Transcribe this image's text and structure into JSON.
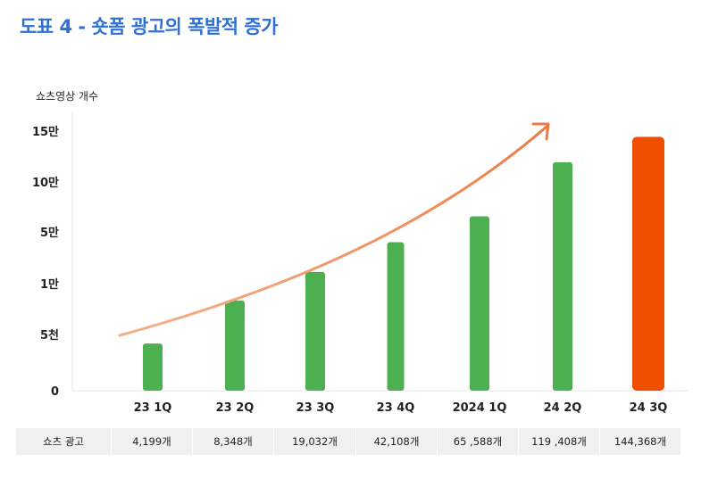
{
  "title": "도표 4 - 숏폼 광고의 폭발적 증가",
  "chart_data": {
    "type": "bar",
    "ylabel": "쇼츠영상 개수",
    "yticks": [
      "0",
      "5천",
      "1만",
      "5만",
      "10만",
      "15만"
    ],
    "categories": [
      "23 1Q",
      "23 2Q",
      "23 3Q",
      "23 4Q",
      "2024 1Q",
      "24 2Q",
      "24 3Q"
    ],
    "values": [
      4199,
      8348,
      19032,
      42108,
      65588,
      119408,
      144368
    ],
    "bar_color": "#4caf50",
    "highlight_color": "#f04e00",
    "highlight_index": 6,
    "trend_arrow_color": "#f08a5d",
    "grid": false
  },
  "table": {
    "row_label": "쇼츠 광고",
    "values": [
      "4,199개",
      "8,348개",
      "19,032개",
      "42,108개",
      "65 ,588개",
      "119 ,408개",
      "144,368개"
    ]
  }
}
